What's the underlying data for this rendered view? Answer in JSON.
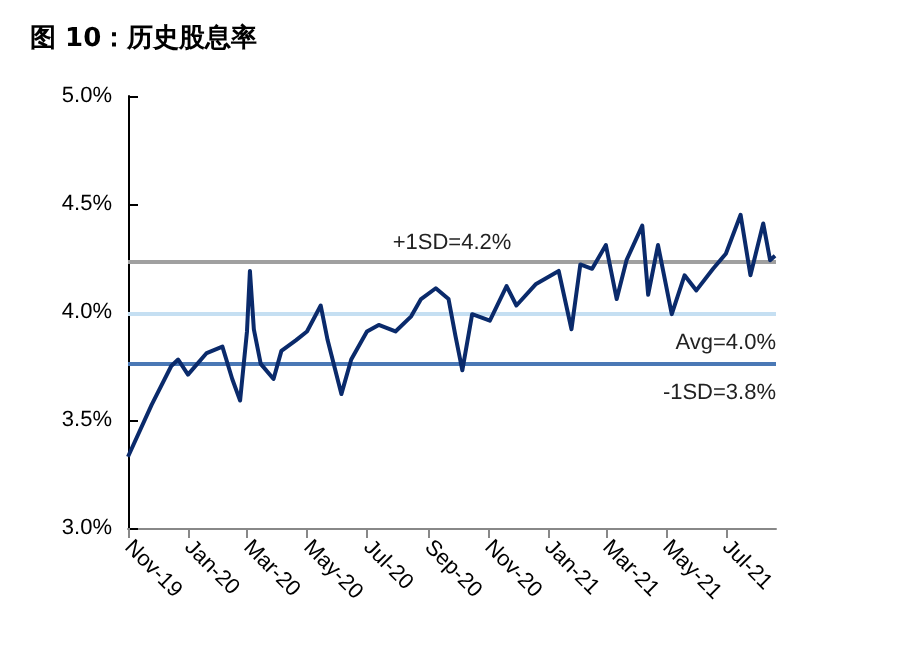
{
  "chart_data": {
    "type": "line",
    "title": "图 10：历史股息率",
    "x": [
      "2019-11-01",
      "2019-11-25",
      "2019-12-15",
      "2019-12-22",
      "2020-01-01",
      "2020-01-20",
      "2020-02-05",
      "2020-02-15",
      "2020-02-23",
      "2020-03-01",
      "2020-03-04",
      "2020-03-08",
      "2020-03-15",
      "2020-03-28",
      "2020-04-05",
      "2020-04-20",
      "2020-05-01",
      "2020-05-15",
      "2020-05-22",
      "2020-06-05",
      "2020-06-15",
      "2020-07-01",
      "2020-07-13",
      "2020-07-30",
      "2020-08-15",
      "2020-08-25",
      "2020-09-09",
      "2020-09-22",
      "2020-09-29",
      "2020-10-06",
      "2020-10-16",
      "2020-11-03",
      "2020-11-20",
      "2020-11-30",
      "2020-12-20",
      "2021-01-12",
      "2021-01-25",
      "2021-02-03",
      "2021-02-15",
      "2021-03-01",
      "2021-03-12",
      "2021-03-22",
      "2021-04-07",
      "2021-04-13",
      "2021-04-23",
      "2021-05-07",
      "2021-05-20",
      "2021-06-01",
      "2021-06-18",
      "2021-07-01",
      "2021-07-16",
      "2021-07-26",
      "2021-08-08",
      "2021-08-15",
      "2021-08-20"
    ],
    "series": [
      {
        "color": "#0a2a6b",
        "values": [
          3.33,
          3.57,
          3.75,
          3.78,
          3.71,
          3.81,
          3.84,
          3.69,
          3.59,
          3.91,
          4.19,
          3.92,
          3.76,
          3.69,
          3.82,
          3.87,
          3.91,
          4.03,
          3.87,
          3.62,
          3.78,
          3.91,
          3.94,
          3.91,
          3.98,
          4.06,
          4.11,
          4.06,
          3.89,
          3.73,
          3.99,
          3.96,
          4.12,
          4.03,
          4.13,
          4.19,
          3.92,
          4.22,
          4.2,
          4.31,
          4.06,
          4.24,
          4.4,
          4.08,
          4.31,
          3.99,
          4.17,
          4.1,
          4.2,
          4.27,
          4.45,
          4.17,
          4.41,
          4.24,
          4.26
        ]
      }
    ],
    "xlim": [
      "2019-11-01",
      "2021-08-21"
    ],
    "xticks": [
      {
        "value": "2019-11-01",
        "label": "Nov-19"
      },
      {
        "value": "2020-01-01",
        "label": "Jan-20"
      },
      {
        "value": "2020-03-01",
        "label": "Mar-20"
      },
      {
        "value": "2020-05-01",
        "label": "May-20"
      },
      {
        "value": "2020-07-01",
        "label": "Jul-20"
      },
      {
        "value": "2020-09-01",
        "label": "Sep-20"
      },
      {
        "value": "2020-11-01",
        "label": "Nov-20"
      },
      {
        "value": "2021-01-01",
        "label": "Jan-21"
      },
      {
        "value": "2021-03-01",
        "label": "Mar-21"
      },
      {
        "value": "2021-05-01",
        "label": "May-21"
      },
      {
        "value": "2021-07-01",
        "label": "Jul-21"
      }
    ],
    "ylim": [
      3.0,
      5.0
    ],
    "yticks": [
      {
        "value": 3.0,
        "label": "3.0%"
      },
      {
        "value": 3.5,
        "label": "3.5%"
      },
      {
        "value": 4.0,
        "label": "4.0%"
      },
      {
        "value": 4.5,
        "label": "4.5%"
      },
      {
        "value": 5.0,
        "label": "5.0%"
      }
    ],
    "ref_lines": [
      {
        "axis": "y",
        "value": 4.23,
        "label": "+1SD=4.2%",
        "color": "#a0a0a0"
      },
      {
        "axis": "y",
        "value": 3.99,
        "label": "Avg=4.0%",
        "color": "#c5dff2"
      },
      {
        "axis": "y",
        "value": 3.76,
        "label": "-1SD=3.8%",
        "color": "#4a78b5"
      }
    ],
    "grid": false,
    "marker": "none",
    "line_style": "solid"
  }
}
